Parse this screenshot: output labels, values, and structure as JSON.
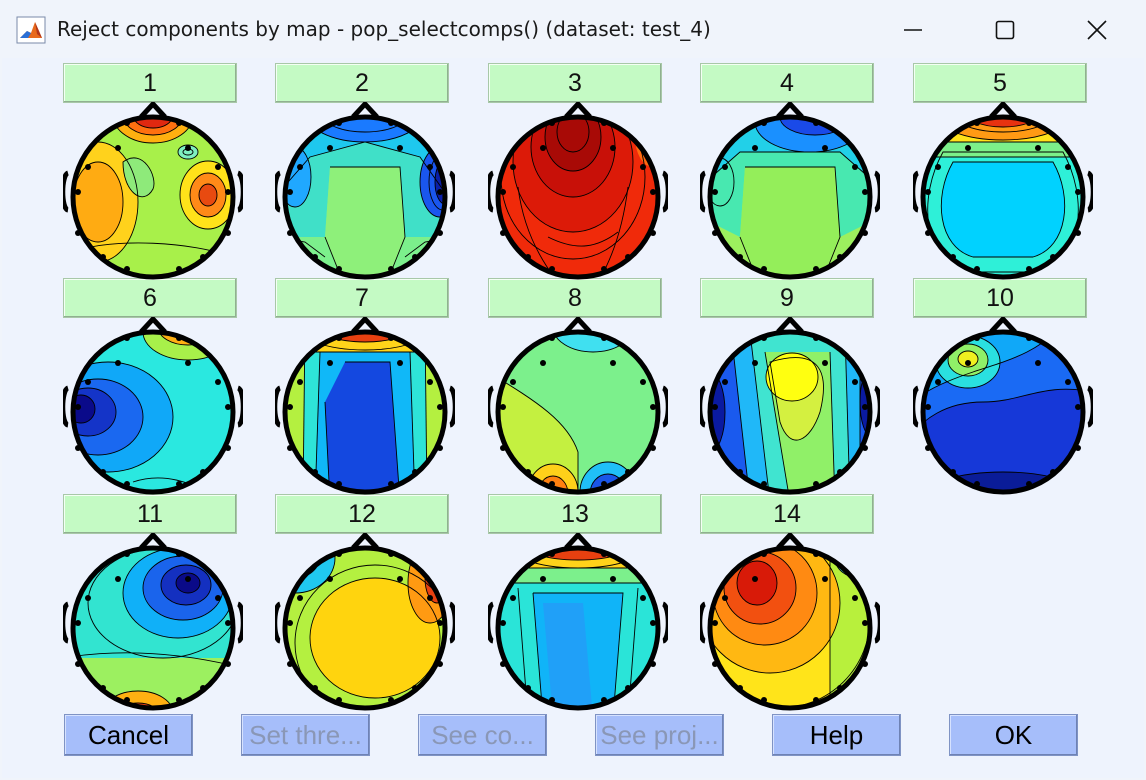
{
  "window": {
    "title": "Reject components by map - pop_selectcomps() (dataset: test_4)",
    "icon": "matlab-icon"
  },
  "window_controls": [
    {
      "name": "minimize-button",
      "glyph": "—"
    },
    {
      "name": "maximize-button",
      "glyph": "☐"
    },
    {
      "name": "close-button",
      "glyph": "✕"
    }
  ],
  "components": [
    {
      "label": "1"
    },
    {
      "label": "2"
    },
    {
      "label": "3"
    },
    {
      "label": "4"
    },
    {
      "label": "5"
    },
    {
      "label": "6"
    },
    {
      "label": "7"
    },
    {
      "label": "8"
    },
    {
      "label": "9"
    },
    {
      "label": "10"
    },
    {
      "label": "11"
    },
    {
      "label": "12"
    },
    {
      "label": "13"
    },
    {
      "label": "14"
    }
  ],
  "buttons": {
    "cancel": {
      "label": "Cancel",
      "enabled": true
    },
    "set_threshold": {
      "label": "Set thre...",
      "enabled": false
    },
    "see_comp": {
      "label": "See co...",
      "enabled": false
    },
    "see_proj": {
      "label": "See proj...",
      "enabled": false
    },
    "help": {
      "label": "Help",
      "enabled": true
    },
    "ok": {
      "label": "OK",
      "enabled": true
    }
  },
  "colors": {
    "component_button": "#c4fac4",
    "action_button": "#a6befa",
    "disabled_text": "#8a97b6",
    "background": "#eef3fd"
  }
}
